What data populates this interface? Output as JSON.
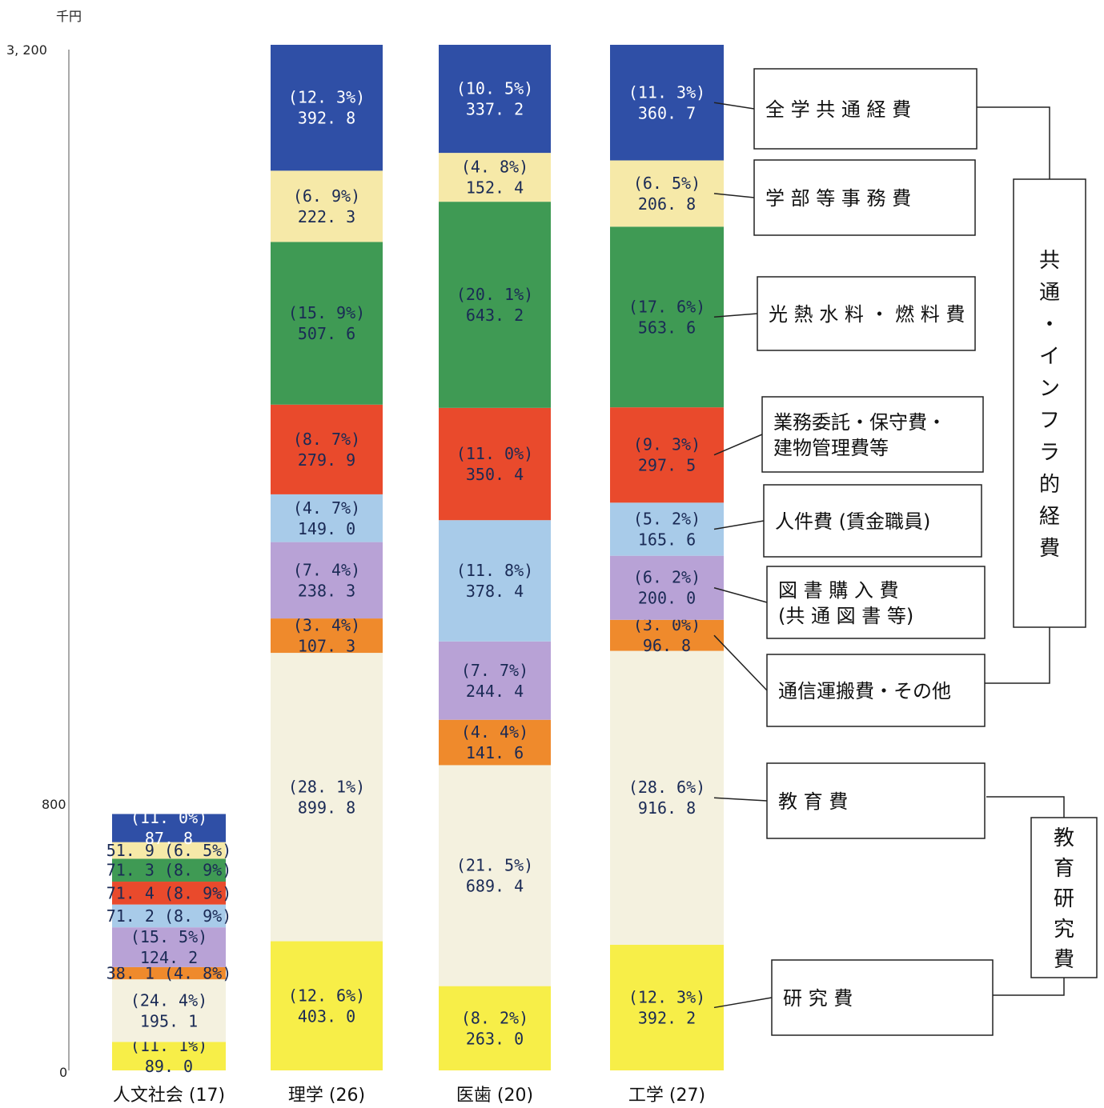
{
  "chart_data": {
    "type": "bar",
    "stacked": true,
    "unit": "千円",
    "y_ticks": [
      "3, 200",
      "800",
      "0"
    ],
    "categories": [
      "人文社会 (17)",
      "理学 (26)",
      "医歯 (20)",
      "工学 (27)"
    ],
    "series": [
      {
        "name": "研 究 費",
        "color": "#f7ee48",
        "values": [
          89.0,
          403.0,
          263.0,
          392.2
        ],
        "labels": [
          [
            "(11. 1%)",
            "89. 0"
          ],
          [
            "(12. 6%)",
            "403. 0"
          ],
          [
            "(8. 2%)",
            "263. 0"
          ],
          [
            "(12. 3%)",
            "392. 2"
          ]
        ]
      },
      {
        "name": "教 育 費",
        "color": "#f4f1df",
        "values": [
          195.1,
          899.8,
          689.4,
          916.8
        ],
        "labels": [
          [
            "(24. 4%)",
            "195. 1"
          ],
          [
            "(28. 1%)",
            "899. 8"
          ],
          [
            "(21. 5%)",
            "689. 4"
          ],
          [
            "(28. 6%)",
            "916. 8"
          ]
        ]
      },
      {
        "name": "通信運搬費・その他",
        "color": "#ef8a2c",
        "values": [
          38.1,
          107.3,
          141.6,
          96.8
        ],
        "labels": [
          [
            "38. 1 (4. 8%)"
          ],
          [
            "(3. 4%)",
            "107. 3"
          ],
          [
            "(4. 4%)",
            "141. 6"
          ],
          [
            "(3. 0%)",
            "96. 8"
          ]
        ]
      },
      {
        "name": "図 書 購 入 費 (共 通 図 書 等)",
        "color": "#b8a2d6",
        "values": [
          124.2,
          238.3,
          244.4,
          200.0
        ],
        "labels": [
          [
            "(15. 5%)",
            "124. 2"
          ],
          [
            "(7. 4%)",
            "238. 3"
          ],
          [
            "(7. 7%)",
            "244. 4"
          ],
          [
            "(6. 2%)",
            "200. 0"
          ]
        ]
      },
      {
        "name": "人件費 (賃金職員)",
        "color": "#a8cbe9",
        "values": [
          71.2,
          149.0,
          378.4,
          165.6
        ],
        "labels": [
          [
            "71. 2 (8. 9%)"
          ],
          [
            "(4. 7%)",
            "149. 0"
          ],
          [
            "(11. 8%)",
            "378. 4"
          ],
          [
            "(5. 2%)",
            "165. 6"
          ]
        ]
      },
      {
        "name": "業務委託・保守費・建物管理費等",
        "color": "#e94a2c",
        "values": [
          71.4,
          279.9,
          350.4,
          297.5
        ],
        "labels": [
          [
            "71. 4 (8. 9%)"
          ],
          [
            "(8. 7%)",
            "279. 9"
          ],
          [
            "(11. 0%)",
            "350. 4"
          ],
          [
            "(9. 3%)",
            "297. 5"
          ]
        ]
      },
      {
        "name": "光 熱 水 料 ・ 燃 料 費",
        "color": "#3f9a54",
        "values": [
          71.3,
          507.6,
          643.2,
          563.6
        ],
        "labels": [
          [
            "71. 3 (8. 9%)"
          ],
          [
            "(15. 9%)",
            "507. 6"
          ],
          [
            "(20. 1%)",
            "643. 2"
          ],
          [
            "(17. 6%)",
            "563. 6"
          ]
        ]
      },
      {
        "name": "学 部 等 事 務 費",
        "color": "#f6e9a8",
        "values": [
          51.9,
          222.3,
          152.4,
          206.8
        ],
        "labels": [
          [
            "51. 9 (6. 5%)"
          ],
          [
            "(6. 9%)",
            "222. 3"
          ],
          [
            "(4. 8%)",
            "152. 4"
          ],
          [
            "(6. 5%)",
            "206. 8"
          ]
        ]
      },
      {
        "name": "全 学 共 通 経 費",
        "color": "#2f4fa6",
        "values": [
          87.8,
          392.8,
          337.2,
          360.7
        ],
        "labels": [
          [
            "(11. 0%)",
            "87. 8"
          ],
          [
            "(12. 3%)",
            "392. 8"
          ],
          [
            "(10. 5%)",
            "337. 2"
          ],
          [
            "(11. 3%)",
            "360. 7"
          ]
        ]
      }
    ],
    "groups": [
      {
        "name": "共通・インフラ的経費"
      },
      {
        "name": "教育研究費"
      }
    ]
  }
}
